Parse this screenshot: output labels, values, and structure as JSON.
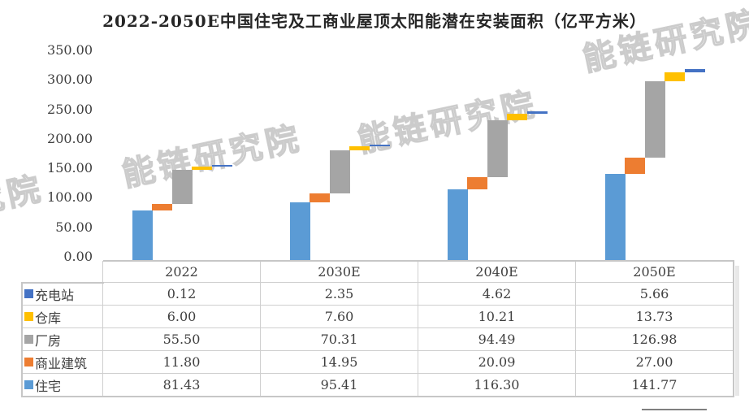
{
  "title": "2022-2050E中国住宅及工商业屋顶太阳能潜在安装面积（亿平方米）",
  "watermark": {
    "text": "能链研究院"
  },
  "chart_data": {
    "type": "bar",
    "subtype": "waterfall-stacked-columns",
    "title": "2022-2050E中国住宅及工商业屋顶太阳能潜在安装面积（亿平方米）",
    "categories": [
      "2022",
      "2030E",
      "2040E",
      "2050E"
    ],
    "series": [
      {
        "name": "充电站",
        "color": "#4472C4",
        "values": [
          0.12,
          2.35,
          4.62,
          5.66
        ]
      },
      {
        "name": "仓库",
        "color": "#FFC000",
        "values": [
          6.0,
          7.6,
          10.21,
          13.73
        ]
      },
      {
        "name": "厂房",
        "color": "#A5A5A5",
        "values": [
          55.5,
          70.31,
          94.49,
          126.98
        ]
      },
      {
        "name": "商业建筑",
        "color": "#ED7D31",
        "values": [
          11.8,
          14.95,
          20.09,
          27.0
        ]
      },
      {
        "name": "住宅",
        "color": "#5B9BD5",
        "values": [
          81.43,
          95.41,
          116.3,
          141.77
        ]
      }
    ],
    "stack_order_bottom_to_top": [
      "住宅",
      "商业建筑",
      "厂房",
      "仓库",
      "充电站"
    ],
    "y_axis": {
      "min": 0,
      "max": 350,
      "step": 50,
      "ylim": [
        0,
        350
      ],
      "tick_labels": [
        "0.00",
        "50.00",
        "100.00",
        "150.00",
        "200.00",
        "250.00",
        "300.00",
        "350.00"
      ]
    },
    "grid": false,
    "legend_position": "data-table-below-chart"
  },
  "table": {
    "columns": [
      "2022",
      "2030E",
      "2040E",
      "2050E"
    ],
    "rows": [
      {
        "label": "充电站",
        "marker_color": "#4472C4",
        "values": [
          "0.12",
          "2.35",
          "4.62",
          "5.66"
        ]
      },
      {
        "label": "仓库",
        "marker_color": "#FFC000",
        "values": [
          "6.00",
          "7.60",
          "10.21",
          "13.73"
        ]
      },
      {
        "label": "厂房",
        "marker_color": "#A5A5A5",
        "values": [
          "55.50",
          "70.31",
          "94.49",
          "126.98"
        ]
      },
      {
        "label": "商业建筑",
        "marker_color": "#ED7D31",
        "values": [
          "11.80",
          "14.95",
          "20.09",
          "27.00"
        ]
      },
      {
        "label": "住宅",
        "marker_color": "#5B9BD5",
        "values": [
          "81.43",
          "95.41",
          "116.30",
          "141.77"
        ]
      }
    ]
  }
}
